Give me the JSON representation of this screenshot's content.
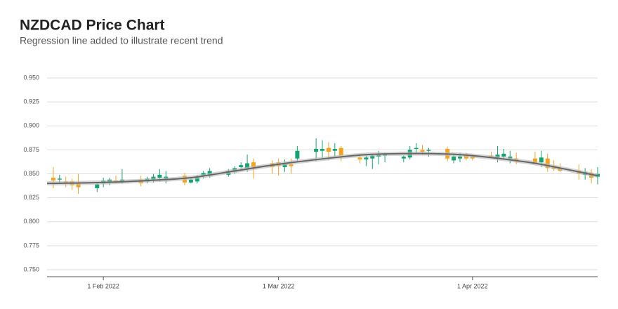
{
  "chart_data": {
    "type": "candlestick",
    "title": "NZDCAD Price Chart",
    "subtitle": "Regression line added to illustrate recent trend",
    "up_color": "#12a56f",
    "down_color": "#f7a21b",
    "trend_color": "#666666",
    "grid": true,
    "xlim": [
      "2022-01-23",
      "2022-04-21"
    ],
    "xticks": [
      {
        "value": "2022-02-01",
        "label": "1 Feb 2022"
      },
      {
        "value": "2022-03-01",
        "label": "1 Mar 2022"
      },
      {
        "value": "2022-04-01",
        "label": "1 Apr 2022"
      }
    ],
    "ylim": [
      0.7427,
      0.95
    ],
    "yticks": [
      {
        "value": 0.75,
        "label": "0.750"
      },
      {
        "value": 0.775,
        "label": "0.775"
      },
      {
        "value": 0.8,
        "label": "0.800"
      },
      {
        "value": 0.825,
        "label": "0.825"
      },
      {
        "value": 0.85,
        "label": "0.850"
      },
      {
        "value": 0.875,
        "label": "0.875"
      },
      {
        "value": 0.9,
        "label": "0.900"
      },
      {
        "value": 0.925,
        "label": "0.925"
      },
      {
        "value": 0.95,
        "label": "0.950"
      }
    ],
    "x": [
      "2022-01-24",
      "2022-01-25",
      "2022-01-26",
      "2022-01-27",
      "2022-01-28",
      "2022-01-31",
      "2022-02-01",
      "2022-02-02",
      "2022-02-03",
      "2022-02-04",
      "2022-02-07",
      "2022-02-08",
      "2022-02-09",
      "2022-02-10",
      "2022-02-11",
      "2022-02-14",
      "2022-02-15",
      "2022-02-16",
      "2022-02-17",
      "2022-02-18",
      "2022-02-21",
      "2022-02-22",
      "2022-02-23",
      "2022-02-24",
      "2022-02-25",
      "2022-02-28",
      "2022-03-01",
      "2022-03-02",
      "2022-03-03",
      "2022-03-04",
      "2022-03-07",
      "2022-03-08",
      "2022-03-09",
      "2022-03-10",
      "2022-03-11",
      "2022-03-14",
      "2022-03-15",
      "2022-03-16",
      "2022-03-17",
      "2022-03-18",
      "2022-03-21",
      "2022-03-22",
      "2022-03-23",
      "2022-03-24",
      "2022-03-25",
      "2022-03-28",
      "2022-03-29",
      "2022-03-30",
      "2022-03-31",
      "2022-04-01",
      "2022-04-04",
      "2022-04-05",
      "2022-04-06",
      "2022-04-07",
      "2022-04-08",
      "2022-04-11",
      "2022-04-12",
      "2022-04-13",
      "2022-04-14",
      "2022-04-15",
      "2022-04-18",
      "2022-04-19",
      "2022-04-20",
      "2022-04-21"
    ],
    "ohlc": [
      [
        0.846,
        0.857,
        0.835,
        0.843
      ],
      [
        0.844,
        0.849,
        0.84,
        0.845
      ],
      [
        0.842,
        0.847,
        0.836,
        0.84
      ],
      [
        0.842,
        0.845,
        0.833,
        0.838
      ],
      [
        0.841,
        0.85,
        0.829,
        0.836
      ],
      [
        0.835,
        0.841,
        0.831,
        0.839
      ],
      [
        0.84,
        0.846,
        0.836,
        0.843
      ],
      [
        0.841,
        0.846,
        0.838,
        0.844
      ],
      [
        0.843,
        0.848,
        0.84,
        0.842
      ],
      [
        0.841,
        0.855,
        0.84,
        0.844
      ],
      [
        0.844,
        0.848,
        0.837,
        0.84
      ],
      [
        0.842,
        0.847,
        0.84,
        0.845
      ],
      [
        0.844,
        0.85,
        0.841,
        0.847
      ],
      [
        0.846,
        0.855,
        0.842,
        0.849
      ],
      [
        0.845,
        0.853,
        0.84,
        0.847
      ],
      [
        0.848,
        0.851,
        0.838,
        0.841
      ],
      [
        0.841,
        0.846,
        0.84,
        0.844
      ],
      [
        0.842,
        0.849,
        0.84,
        0.847
      ],
      [
        0.848,
        0.853,
        0.845,
        0.851
      ],
      [
        0.848,
        0.856,
        0.846,
        0.853
      ],
      [
        0.849,
        0.855,
        0.847,
        0.853
      ],
      [
        0.852,
        0.858,
        0.85,
        0.856
      ],
      [
        0.857,
        0.862,
        0.855,
        0.859
      ],
      [
        0.856,
        0.87,
        0.852,
        0.861
      ],
      [
        0.862,
        0.866,
        0.845,
        0.857
      ],
      [
        0.861,
        0.864,
        0.85,
        0.857
      ],
      [
        0.862,
        0.866,
        0.848,
        0.858
      ],
      [
        0.857,
        0.865,
        0.852,
        0.86
      ],
      [
        0.86,
        0.866,
        0.85,
        0.858
      ],
      [
        0.866,
        0.879,
        0.862,
        0.874
      ],
      [
        0.873,
        0.887,
        0.863,
        0.876
      ],
      [
        0.874,
        0.885,
        0.865,
        0.876
      ],
      [
        0.877,
        0.883,
        0.864,
        0.873
      ],
      [
        0.874,
        0.882,
        0.868,
        0.876
      ],
      [
        0.877,
        0.879,
        0.863,
        0.869
      ],
      [
        0.867,
        0.871,
        0.861,
        0.865
      ],
      [
        0.865,
        0.869,
        0.858,
        0.867
      ],
      [
        0.866,
        0.871,
        0.855,
        0.869
      ],
      [
        0.868,
        0.874,
        0.86,
        0.87
      ],
      [
        0.869,
        0.872,
        0.862,
        0.871
      ],
      [
        0.866,
        0.869,
        0.862,
        0.868
      ],
      [
        0.867,
        0.879,
        0.865,
        0.875
      ],
      [
        0.876,
        0.882,
        0.872,
        0.877
      ],
      [
        0.875,
        0.88,
        0.87,
        0.873
      ],
      [
        0.874,
        0.877,
        0.868,
        0.875
      ],
      [
        0.876,
        0.878,
        0.863,
        0.866
      ],
      [
        0.864,
        0.87,
        0.861,
        0.868
      ],
      [
        0.866,
        0.872,
        0.862,
        0.868
      ],
      [
        0.869,
        0.872,
        0.864,
        0.866
      ],
      [
        0.868,
        0.87,
        0.864,
        0.866
      ],
      [
        0.869,
        0.873,
        0.866,
        0.868
      ],
      [
        0.867,
        0.879,
        0.862,
        0.87
      ],
      [
        0.868,
        0.876,
        0.865,
        0.871
      ],
      [
        0.866,
        0.874,
        0.861,
        0.868
      ],
      [
        0.866,
        0.872,
        0.86,
        0.863
      ],
      [
        0.866,
        0.873,
        0.862,
        0.861
      ],
      [
        0.862,
        0.874,
        0.857,
        0.867
      ],
      [
        0.866,
        0.871,
        0.852,
        0.856
      ],
      [
        0.858,
        0.864,
        0.853,
        0.855
      ],
      [
        0.856,
        0.861,
        0.852,
        0.853
      ],
      [
        0.853,
        0.86,
        0.844,
        0.85
      ],
      [
        0.849,
        0.856,
        0.844,
        0.852
      ],
      [
        0.851,
        0.855,
        0.84,
        0.846
      ],
      [
        0.847,
        0.857,
        0.839,
        0.85
      ]
    ],
    "trend": {
      "x": [
        "2022-01-23",
        "2022-02-01",
        "2022-02-08",
        "2022-02-15",
        "2022-02-22",
        "2022-03-01",
        "2022-03-10",
        "2022-03-15",
        "2022-03-20",
        "2022-03-26",
        "2022-04-01",
        "2022-04-10",
        "2022-04-15",
        "2022-04-21"
      ],
      "values": [
        0.84,
        0.841,
        0.843,
        0.846,
        0.853,
        0.86,
        0.867,
        0.87,
        0.871,
        0.871,
        0.869,
        0.862,
        0.856,
        0.848
      ]
    }
  }
}
